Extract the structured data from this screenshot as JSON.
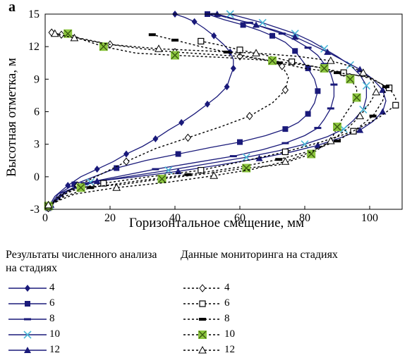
{
  "chart_data": {
    "type": "line",
    "panel_label": "a",
    "xlabel": "Горизонтальное смещение, мм",
    "ylabel": "Высотная отметка, м",
    "xlim": [
      0,
      110
    ],
    "ylim": [
      -3,
      15
    ],
    "xticks": [
      0,
      20,
      40,
      60,
      80,
      100
    ],
    "yticks": [
      -3,
      0,
      3,
      6,
      9,
      12,
      15
    ],
    "grid": false,
    "legend": {
      "numerical_title": "Результаты численного анализа на стадиях",
      "monitoring_title": "Данные мониторинга на стадиях"
    },
    "series_numerical": [
      {
        "name": "4",
        "marker": "diamond",
        "x": [
          0.8,
          3,
          7,
          11,
          16,
          21,
          25,
          30,
          34,
          38,
          42,
          46,
          50,
          53,
          56,
          57,
          58,
          58,
          57,
          55,
          52,
          49,
          46,
          43,
          40
        ],
        "y": [
          -2.9,
          -1.8,
          -0.8,
          0,
          0.7,
          1.4,
          2.1,
          2.8,
          3.5,
          4.3,
          5.0,
          5.8,
          6.7,
          7.4,
          8.3,
          9.2,
          10.0,
          10.8,
          11.5,
          12.2,
          13.0,
          13.7,
          14.3,
          14.7,
          15.0
        ]
      },
      {
        "name": "6",
        "marker": "square",
        "x": [
          1,
          4,
          9,
          15,
          22,
          31,
          41,
          51,
          60,
          68,
          74,
          78,
          81,
          83,
          84,
          83,
          81,
          79,
          77,
          74,
          70,
          66,
          61,
          55,
          50
        ],
        "y": [
          -2.9,
          -1.6,
          -0.7,
          0,
          0.8,
          1.5,
          2.1,
          2.7,
          3.2,
          3.8,
          4.4,
          5.0,
          5.8,
          6.8,
          7.9,
          9.0,
          10.0,
          10.8,
          11.6,
          12.4,
          13.0,
          13.5,
          14.0,
          14.5,
          15.0
        ]
      },
      {
        "name": "8",
        "marker": "dash",
        "x": [
          1.2,
          5,
          12,
          22,
          34,
          46,
          58,
          67,
          74,
          80,
          84,
          86,
          88,
          89,
          89,
          88,
          86,
          84,
          81,
          77,
          73,
          68,
          63,
          57,
          52
        ],
        "y": [
          -2.8,
          -1.5,
          -0.6,
          0,
          0.7,
          1.3,
          1.9,
          2.5,
          3.1,
          3.8,
          4.5,
          5.3,
          6.3,
          7.4,
          8.5,
          9.5,
          10.4,
          11.2,
          11.9,
          12.6,
          13.2,
          13.7,
          14.2,
          14.6,
          15.0
        ]
      },
      {
        "name": "10",
        "marker": "x",
        "x": [
          1.5,
          6,
          14,
          25,
          38,
          50,
          62,
          72,
          80,
          87,
          92,
          95,
          98,
          99,
          99,
          97,
          94,
          90,
          86,
          82,
          77,
          72,
          67,
          62,
          57
        ],
        "y": [
          -2.7,
          -1.4,
          -0.5,
          0,
          0.6,
          1.2,
          1.8,
          2.4,
          3.0,
          3.7,
          4.4,
          5.2,
          6.2,
          7.3,
          8.4,
          9.4,
          10.3,
          11.1,
          11.8,
          12.5,
          13.2,
          13.7,
          14.2,
          14.6,
          15.0
        ]
      },
      {
        "name": "12",
        "marker": "triangle",
        "x": [
          1.8,
          7,
          16,
          28,
          41,
          54,
          66,
          76,
          84,
          91,
          97,
          101,
          104,
          105,
          104,
          101,
          97,
          92,
          87,
          82,
          77,
          71,
          65,
          59,
          53
        ],
        "y": [
          -2.6,
          -1.3,
          -0.4,
          0,
          0.5,
          1.1,
          1.7,
          2.3,
          2.9,
          3.6,
          4.3,
          5.1,
          6.0,
          7.0,
          8.0,
          9.0,
          9.9,
          10.7,
          11.5,
          12.2,
          12.9,
          13.5,
          14.0,
          14.5,
          15.0
        ]
      }
    ],
    "series_monitoring": [
      {
        "name": "4",
        "marker": "diamond-open",
        "x": [
          1,
          4,
          10,
          17,
          25,
          34,
          44,
          54,
          63,
          70,
          74,
          75,
          73,
          68,
          60,
          50,
          40,
          30,
          20,
          12,
          5,
          2
        ],
        "y": [
          -2.9,
          -1.8,
          -0.8,
          0.2,
          1.4,
          2.6,
          3.6,
          4.6,
          5.6,
          6.8,
          8.0,
          9.2,
          10.2,
          10.8,
          11.1,
          11.3,
          11.5,
          11.8,
          12.2,
          12.7,
          13.1,
          13.3
        ]
      },
      {
        "name": "6",
        "marker": "square-open",
        "x": [
          1,
          8,
          18,
          32,
          48,
          62,
          74,
          85,
          95,
          103,
          108,
          108,
          106,
          100,
          92,
          84,
          76,
          68,
          60,
          53,
          48
        ],
        "y": [
          -2.8,
          -1.2,
          -0.6,
          0,
          0.6,
          1.5,
          2.3,
          3.2,
          4.2,
          5.5,
          6.6,
          7.3,
          8.2,
          9.1,
          9.6,
          10.1,
          10.6,
          11.2,
          11.7,
          12.2,
          12.5
        ]
      },
      {
        "name": "8",
        "marker": "dash-bold",
        "x": [
          1,
          6,
          14,
          28,
          44,
          60,
          72,
          82,
          90,
          96,
          101,
          104,
          105,
          100,
          90,
          80,
          72,
          64,
          56,
          48,
          40,
          33
        ],
        "y": [
          -2.8,
          -1.8,
          -1.0,
          -0.4,
          0.2,
          0.9,
          1.6,
          2.4,
          3.3,
          4.4,
          5.6,
          7.0,
          8.3,
          9.2,
          9.6,
          10.0,
          10.5,
          11.0,
          11.5,
          12.0,
          12.6,
          13.1
        ]
      },
      {
        "name": "10",
        "marker": "x-green",
        "x": [
          1,
          5,
          11,
          24,
          36,
          50,
          62,
          72,
          82,
          88,
          90,
          93,
          96,
          96,
          94,
          90,
          86,
          80,
          70,
          55,
          40,
          28,
          18,
          12,
          7
        ],
        "y": [
          -2.7,
          -1.7,
          -1.0,
          -0.7,
          -0.2,
          0.3,
          0.8,
          1.1,
          2.1,
          3.3,
          4.6,
          6.0,
          7.3,
          8.2,
          9.0,
          9.6,
          10.0,
          10.3,
          10.7,
          11.0,
          11.2,
          11.4,
          12.0,
          12.6,
          13.2
        ]
      },
      {
        "name": "12",
        "marker": "triangle-open",
        "x": [
          1,
          9,
          22,
          38,
          52,
          64,
          74,
          82,
          88,
          93,
          97,
          100,
          102,
          101,
          98,
          94,
          88,
          78,
          65,
          50,
          35,
          20,
          9,
          3
        ],
        "y": [
          -2.6,
          -1.6,
          -1.0,
          -0.5,
          0.1,
          0.7,
          1.4,
          2.3,
          3.3,
          4.4,
          5.6,
          6.8,
          7.8,
          8.8,
          9.6,
          10.2,
          10.7,
          11.1,
          11.4,
          11.6,
          11.8,
          12.2,
          12.8,
          13.2
        ]
      }
    ]
  }
}
